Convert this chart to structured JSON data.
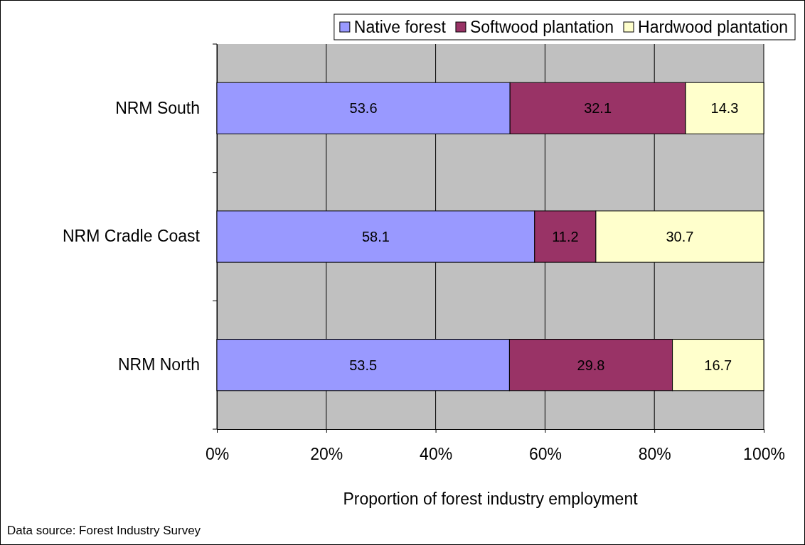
{
  "chart_data": {
    "type": "bar",
    "orientation": "horizontal",
    "stacked": true,
    "categories": [
      "NRM South",
      "NRM Cradle Coast",
      "NRM North"
    ],
    "series": [
      {
        "name": "Native forest",
        "color": "#9999ff",
        "values": [
          53.6,
          58.1,
          53.5
        ]
      },
      {
        "name": "Softwood plantation",
        "color": "#993366",
        "values": [
          32.1,
          11.2,
          29.8
        ]
      },
      {
        "name": "Hardwood plantation",
        "color": "#ffffcc",
        "values": [
          14.3,
          30.7,
          16.7
        ]
      }
    ],
    "xlim": [
      0,
      100
    ],
    "xticks": [
      {
        "value": 0,
        "label": "0%"
      },
      {
        "value": 20,
        "label": "20%"
      },
      {
        "value": 40,
        "label": "40%"
      },
      {
        "value": 60,
        "label": "60%"
      },
      {
        "value": 80,
        "label": "80%"
      },
      {
        "value": 100,
        "label": "100%"
      }
    ],
    "xlabel": "Proportion of forest industry employment",
    "grid": "x",
    "legend": "top right",
    "data_labels": true,
    "annotations": [
      "Data source: Forest Industry Survey"
    ]
  }
}
